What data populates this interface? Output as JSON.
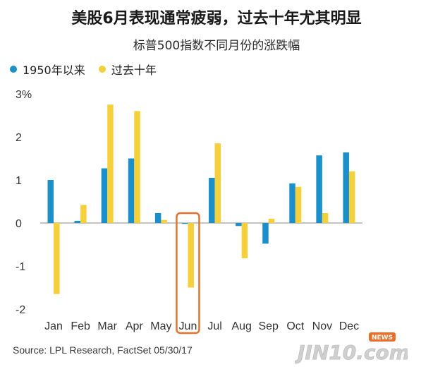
{
  "header": {
    "title": "美股6月表现通常疲弱，过去十年尤其明显",
    "subtitle": "标普500指数不同月份的涨跌幅"
  },
  "footer": {
    "source": "Source: LPL Research, FactSet   05/30/17"
  },
  "watermark": {
    "text": "JIN10.com",
    "badge": "NEWS"
  },
  "chart_data": {
    "type": "bar",
    "categories": [
      "Jan",
      "Feb",
      "Mar",
      "Apr",
      "May",
      "Jun",
      "Jul",
      "Aug",
      "Sep",
      "Oct",
      "Nov",
      "Dec"
    ],
    "series": [
      {
        "name": "1950年以来",
        "color": "#1a8fc9",
        "values": [
          1.0,
          0.05,
          1.27,
          1.5,
          0.23,
          -0.02,
          1.05,
          -0.07,
          -0.48,
          0.92,
          1.57,
          1.64
        ]
      },
      {
        "name": "过去十年",
        "color": "#f5d03a",
        "values": [
          -1.65,
          0.42,
          2.75,
          2.6,
          0.07,
          -1.5,
          1.85,
          -0.82,
          0.1,
          0.84,
          0.23,
          1.2
        ]
      }
    ],
    "ylim": [
      -2,
      3
    ],
    "yticks": [
      {
        "value": 3,
        "label": "3%"
      },
      {
        "value": 2,
        "label": "2"
      },
      {
        "value": 1,
        "label": "1"
      },
      {
        "value": 0,
        "label": "0"
      },
      {
        "value": -1,
        "label": "-1"
      },
      {
        "value": -2,
        "label": "-2"
      }
    ],
    "highlight_category": "Jun",
    "highlight_color": "#e8702a",
    "legend_position": "top-left",
    "grid": false
  }
}
